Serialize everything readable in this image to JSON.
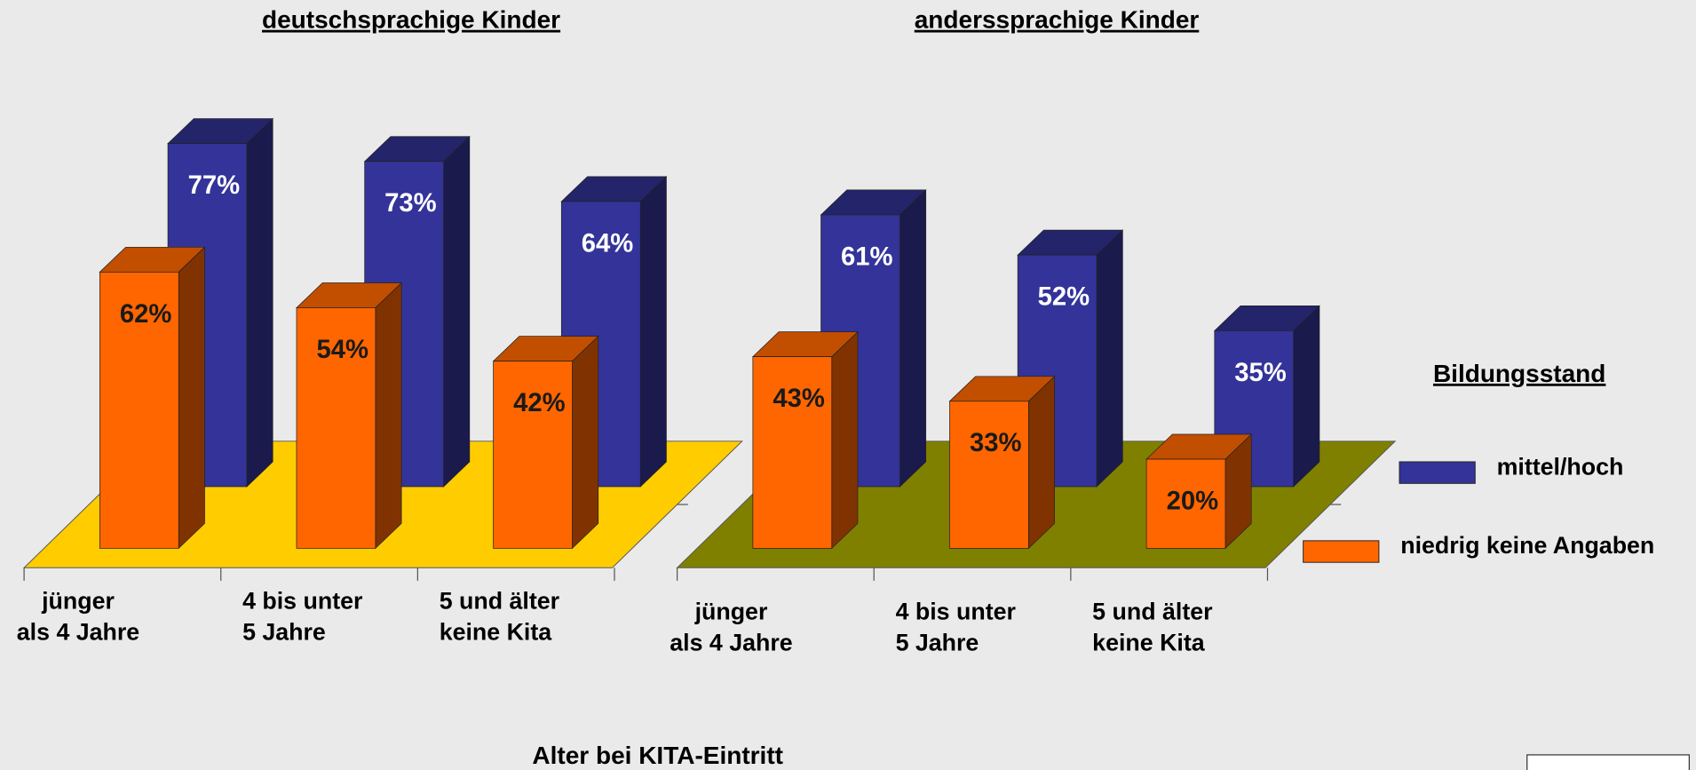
{
  "chart_data": [
    {
      "type": "bar",
      "title": "deutschsprachige Kinder",
      "floor_color": "#ffcc00",
      "categories": [
        "jünger\nals 4 Jahre",
        "4 bis unter\n5 Jahre",
        "5 und älter\nkeine Kita"
      ],
      "series": [
        {
          "name": "mittel/hoch",
          "color": "#333399",
          "values": [
            77,
            73,
            64
          ],
          "value_labels": [
            "77%",
            "73%",
            "64%"
          ]
        },
        {
          "name": "niedrig keine Angaben",
          "color": "#ff6600",
          "values": [
            62,
            54,
            42
          ],
          "value_labels": [
            "62%",
            "54%",
            "42%"
          ]
        }
      ]
    },
    {
      "type": "bar",
      "title": "anderssprachige Kinder",
      "floor_color": "#808000",
      "categories": [
        "jünger\nals 4 Jahre",
        "4 bis unter\n5 Jahre",
        "5 und älter\nkeine Kita"
      ],
      "series": [
        {
          "name": "mittel/hoch",
          "color": "#333399",
          "values": [
            61,
            52,
            35
          ],
          "value_labels": [
            "61%",
            "52%",
            "35%"
          ]
        },
        {
          "name": "niedrig keine Angaben",
          "color": "#ff6600",
          "values": [
            43,
            33,
            20
          ],
          "value_labels": [
            "43%",
            "33%",
            "20%"
          ]
        }
      ]
    }
  ],
  "x_label": "Alter bei KITA-Eintritt",
  "legend_title": "Bildungsstand"
}
